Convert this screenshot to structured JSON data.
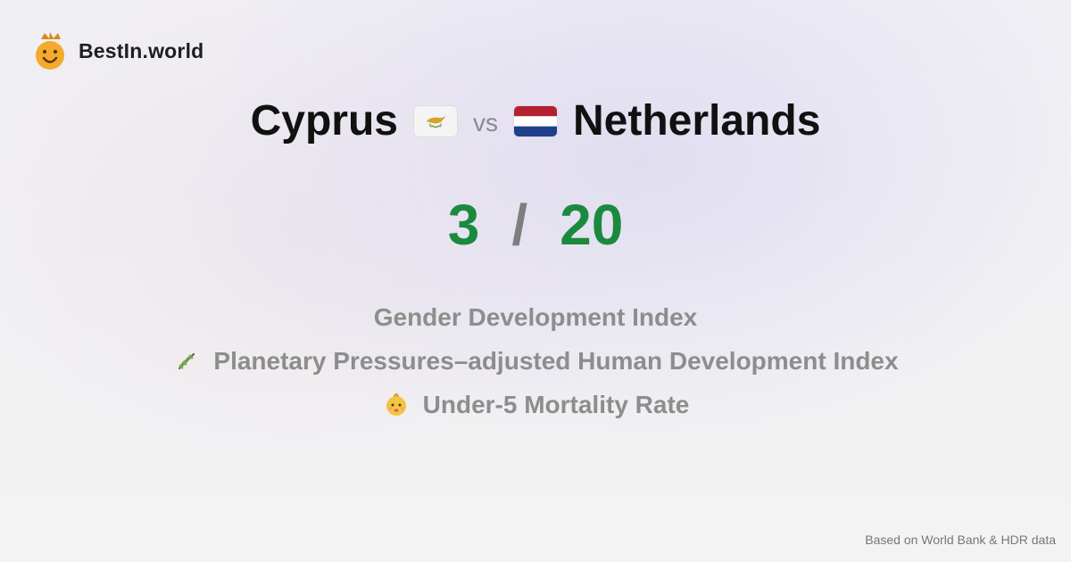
{
  "brand": {
    "name": "BestIn.world",
    "logo_icon": "smiling-crowned-face-icon"
  },
  "comparison": {
    "left_country": "Cyprus",
    "left_flag_icon": "cyprus-flag-icon",
    "vs_text": "vs",
    "right_country": "Netherlands",
    "right_flag_icon": "netherlands-flag-icon"
  },
  "score": {
    "left": "3",
    "separator": "/",
    "right": "20"
  },
  "metrics": [
    {
      "label": "Gender Development Index"
    },
    {
      "label": "Planetary Pressures–adjusted Human Development Index",
      "icon": "olive-branch-icon"
    },
    {
      "label": "Under-5 Mortality Rate",
      "icon": "baby-face-icon"
    }
  ],
  "footer": {
    "note": "Based on World Bank & HDR data"
  },
  "colors": {
    "score_green": "#1b8a3f",
    "muted_gray": "#8d8d8d",
    "title_black": "#111111"
  }
}
